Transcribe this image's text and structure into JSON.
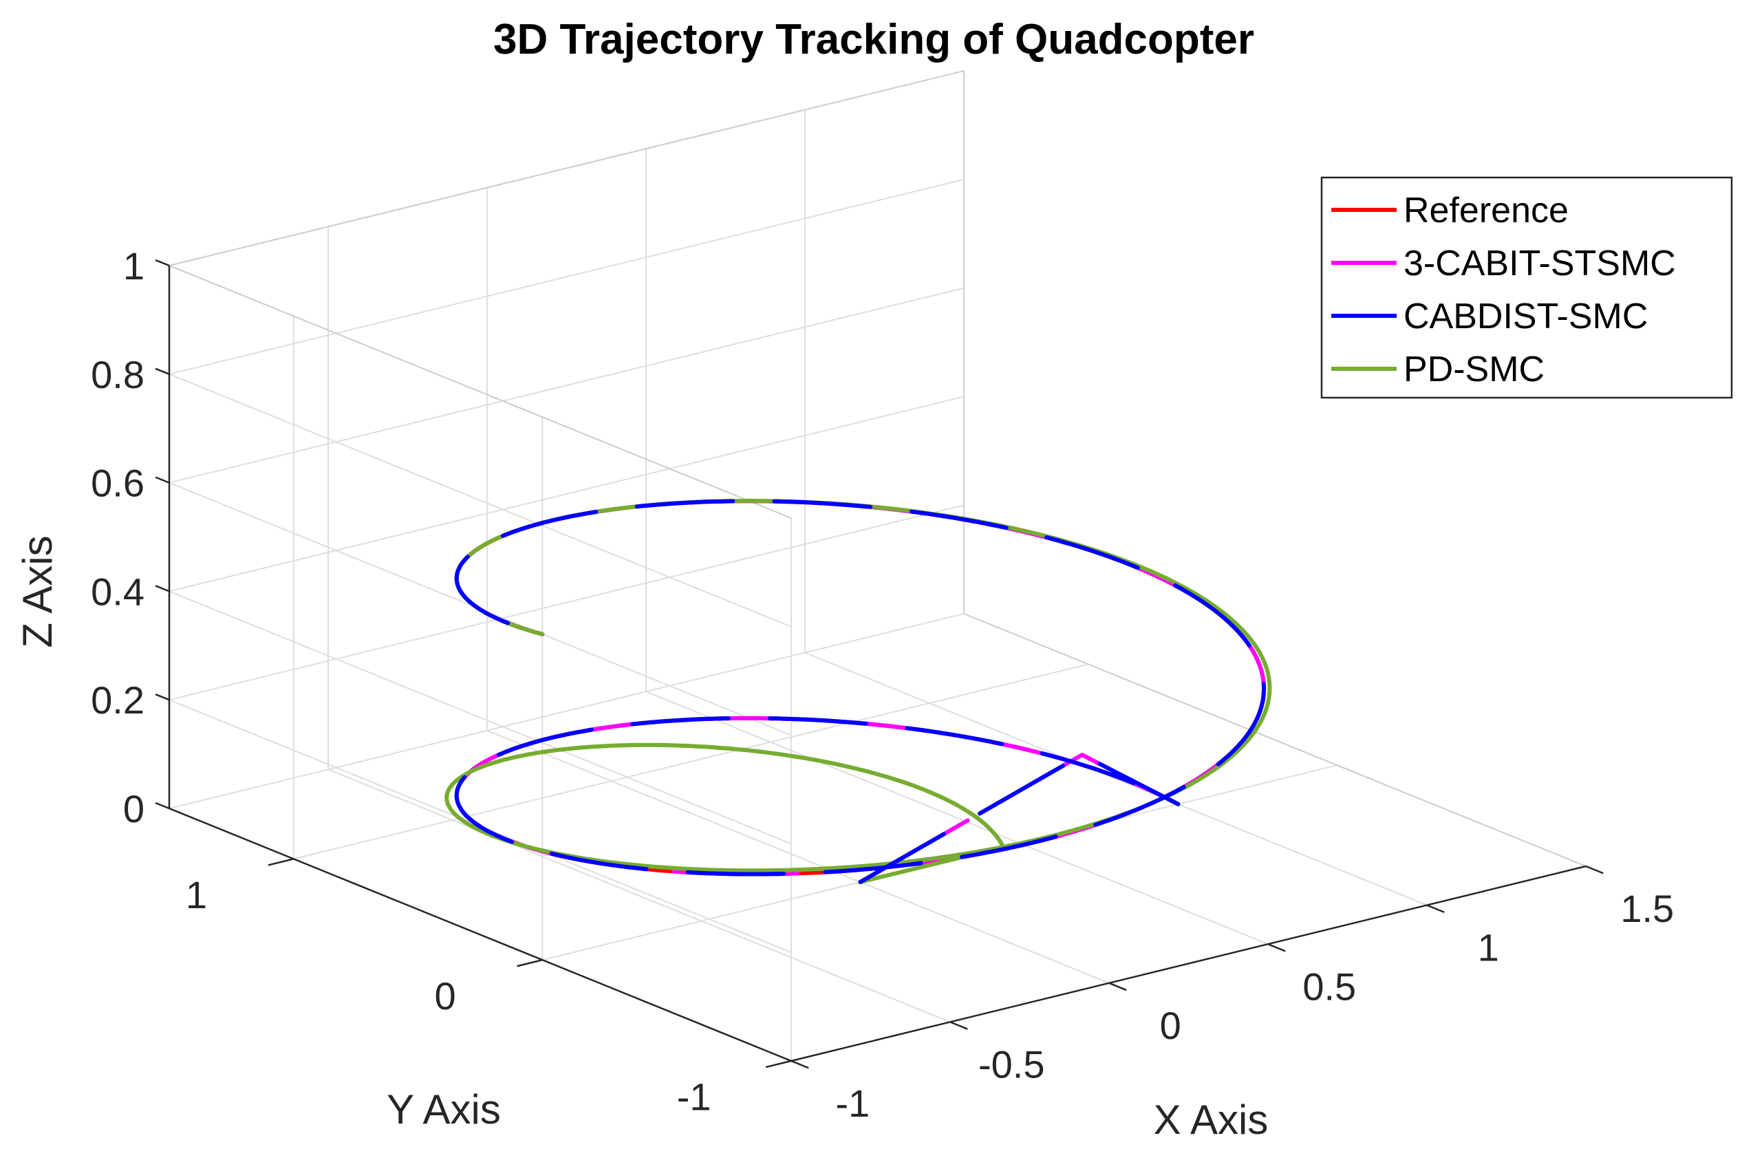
{
  "chart_data": {
    "type": "line",
    "title": "3D Trajectory Tracking of Quadcopter",
    "xlabel": "X Axis",
    "ylabel": "Y Axis",
    "zlabel": "Z Axis",
    "xlim": [
      -1,
      1.5
    ],
    "ylim": [
      -1,
      1.5
    ],
    "zlim": [
      0,
      1
    ],
    "x_ticks": [
      "-1",
      "-0.5",
      "0",
      "0.5",
      "1",
      "1.5"
    ],
    "y_ticks": [
      "-1",
      "0",
      "1"
    ],
    "z_ticks": [
      "0",
      "0.2",
      "0.4",
      "0.6",
      "0.8",
      "1"
    ],
    "grid": true,
    "legend_position": "top-right",
    "trajectory": {
      "shape": "helix",
      "center": [
        0,
        0
      ],
      "radius": 1,
      "z_start": 0,
      "z_end": 0.6,
      "turns": 1.5
    },
    "series": [
      {
        "name": "Reference",
        "color": "#ff0000",
        "start_point": [
          1,
          0,
          0
        ]
      },
      {
        "name": "3-CABIT-STSMC",
        "color": "#ff00ff",
        "start_point": [
          0,
          0,
          0
        ]
      },
      {
        "name": "CABDIST-SMC",
        "color": "#0000ff",
        "start_point": [
          0,
          0,
          0
        ]
      },
      {
        "name": "PD-SMC",
        "color": "#77ac30",
        "start_point": [
          0,
          0,
          0
        ]
      }
    ]
  }
}
